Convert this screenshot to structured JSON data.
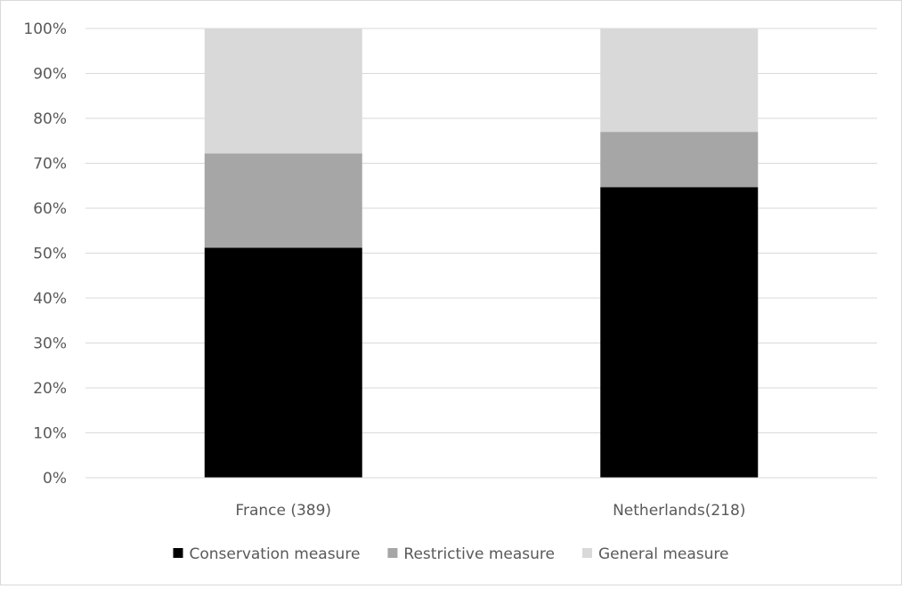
{
  "chart_data": {
    "type": "bar",
    "stacked": true,
    "percent_stacked": true,
    "categories": [
      "France (389)",
      "Netherlands(218)"
    ],
    "series": [
      {
        "name": "Conservation measure",
        "values": [
          51.2,
          64.7
        ],
        "color": "#000000"
      },
      {
        "name": "Restrictive measure",
        "values": [
          21.0,
          12.3
        ],
        "color": "#a6a6a6"
      },
      {
        "name": "General measure",
        "values": [
          27.8,
          23.0
        ],
        "color": "#d9d9d9"
      }
    ],
    "ylim": [
      0,
      100
    ],
    "yticks": [
      "0%",
      "10%",
      "20%",
      "30%",
      "40%",
      "50%",
      "60%",
      "70%",
      "80%",
      "90%",
      "100%"
    ],
    "grid": true,
    "legend": "bottom",
    "title": "",
    "xlabel": "",
    "ylabel": ""
  }
}
